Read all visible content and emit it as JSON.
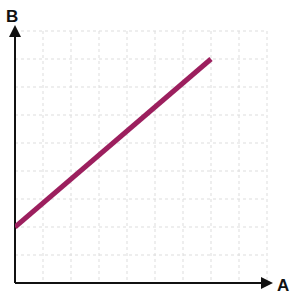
{
  "chart_data": {
    "type": "line",
    "xlabel": "A",
    "ylabel": "B",
    "x": [
      0,
      7
    ],
    "values": [
      2,
      8
    ],
    "color": "#9c1f5e",
    "xlim": [
      0,
      9
    ],
    "ylim": [
      0,
      9
    ],
    "xticks": [
      0,
      1,
      2,
      3,
      4,
      5,
      6,
      7,
      8,
      9
    ],
    "yticks": [
      0,
      1,
      2,
      3,
      4,
      5,
      6,
      7,
      8,
      9
    ],
    "grid": true,
    "tick_labels": false
  }
}
